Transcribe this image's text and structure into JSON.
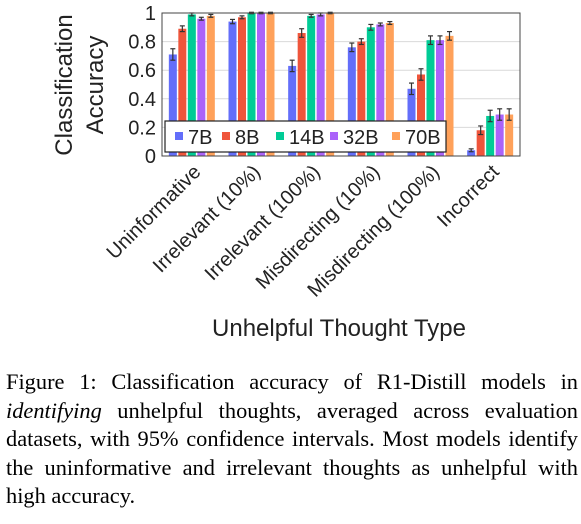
{
  "chart_data": {
    "type": "bar",
    "ylabel_lines": [
      "Classification",
      "Accuracy"
    ],
    "xlabel": "Unhelpful Thought Type",
    "ylim": [
      0,
      1
    ],
    "yticks": [
      "0",
      "0.2",
      "0.4",
      "0.6",
      "0.8",
      "1"
    ],
    "grid": true,
    "legend_position": "bottom-left",
    "categories": [
      "Uninformative",
      "Irrelevant (10%)",
      "Irrelevant (100%)",
      "Misdirecting (10%)",
      "Misdirecting (100%)",
      "Incorrect"
    ],
    "series": [
      {
        "name": "7B",
        "color": "#636efa",
        "values": [
          0.71,
          0.94,
          0.63,
          0.76,
          0.47,
          0.04
        ],
        "errors": [
          0.04,
          0.015,
          0.04,
          0.03,
          0.04,
          0.01
        ]
      },
      {
        "name": "8B",
        "color": "#ef553b",
        "values": [
          0.89,
          0.97,
          0.86,
          0.8,
          0.57,
          0.18
        ],
        "errors": [
          0.02,
          0.01,
          0.03,
          0.02,
          0.04,
          0.03
        ]
      },
      {
        "name": "14B",
        "color": "#00cc96",
        "values": [
          0.99,
          1.0,
          0.98,
          0.9,
          0.81,
          0.28
        ],
        "errors": [
          0.01,
          0.005,
          0.01,
          0.02,
          0.03,
          0.04
        ]
      },
      {
        "name": "32B",
        "color": "#ab63fa",
        "values": [
          0.96,
          1.0,
          0.99,
          0.92,
          0.81,
          0.29
        ],
        "errors": [
          0.01,
          0.005,
          0.01,
          0.01,
          0.03,
          0.04
        ]
      },
      {
        "name": "70B",
        "color": "#ffa15a",
        "values": [
          0.98,
          1.0,
          1.0,
          0.93,
          0.84,
          0.29
        ],
        "errors": [
          0.01,
          0.005,
          0.005,
          0.01,
          0.03,
          0.04
        ]
      }
    ]
  },
  "caption": {
    "label": "Figure 1:",
    "text_before": " Classification accuracy of R1-Distill models in ",
    "emphasis": "identifying",
    "text_after": " unhelpful thoughts, averaged across evaluation datasets, with 95% confidence intervals. Most models identify the uninformative and irrelevant thoughts as unhelpful with high accuracy."
  }
}
